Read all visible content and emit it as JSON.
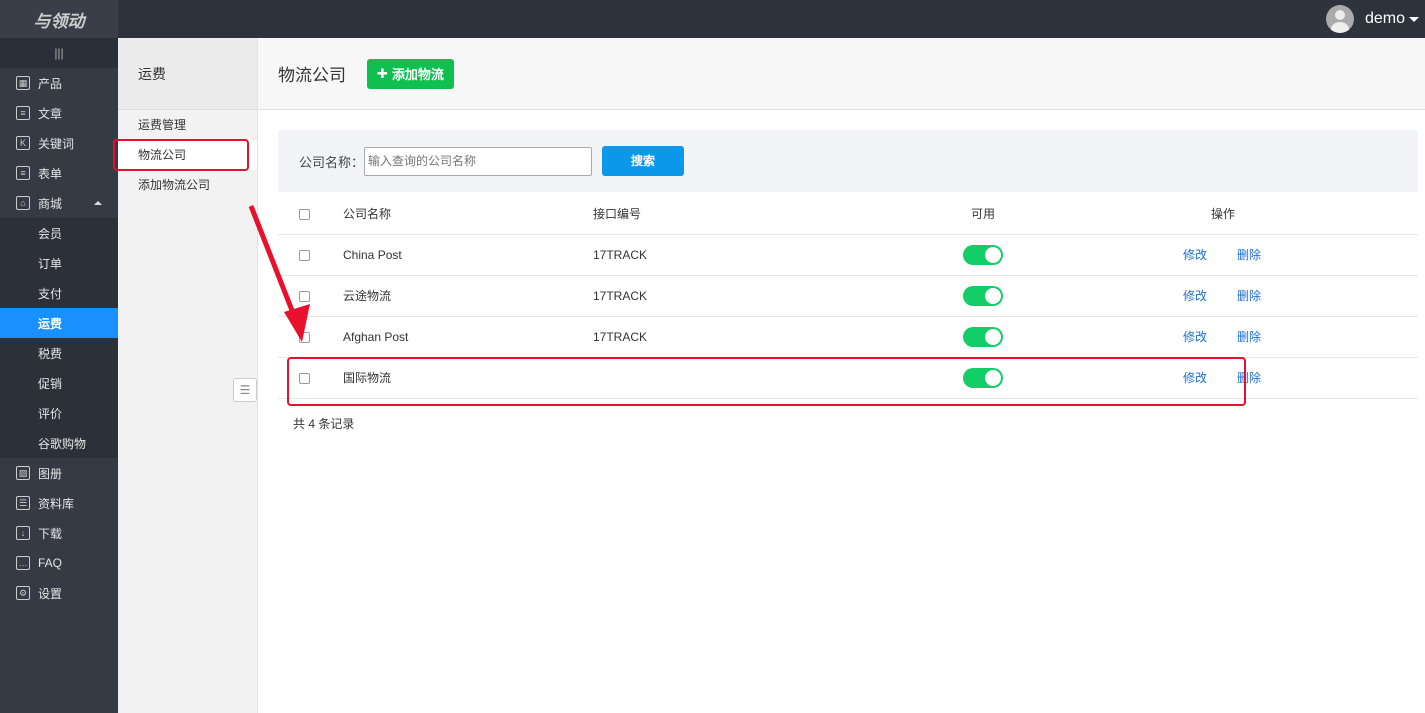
{
  "app": {
    "logo": "与领动",
    "user": "demo"
  },
  "sidebar": {
    "items": [
      {
        "label": "产品",
        "icon": "grid-icon"
      },
      {
        "label": "文章",
        "icon": "document-icon"
      },
      {
        "label": "关键词",
        "icon": "k-icon"
      },
      {
        "label": "表单",
        "icon": "clipboard-icon"
      },
      {
        "label": "商城",
        "icon": "bag-icon",
        "expanded": true,
        "children": [
          "会员",
          "订单",
          "支付",
          "运费",
          "税费",
          "促销",
          "评价",
          "谷歌购物"
        ]
      },
      {
        "label": "图册",
        "icon": "image-icon"
      },
      {
        "label": "资料库",
        "icon": "database-icon"
      },
      {
        "label": "下载",
        "icon": "download-icon"
      },
      {
        "label": "FAQ",
        "icon": "chat-icon"
      },
      {
        "label": "设置",
        "icon": "gear-icon"
      }
    ],
    "active": "运费"
  },
  "subnav": {
    "title": "运费",
    "items": [
      "运费管理",
      "物流公司",
      "添加物流公司"
    ],
    "selected": "物流公司"
  },
  "main": {
    "title": "物流公司",
    "add_label": "添加物流",
    "search_label": "公司名称：",
    "search_placeholder": "输入查询的公司名称",
    "search_button": "搜索",
    "columns": [
      "公司名称",
      "接口编号",
      "可用",
      "操作"
    ],
    "rows": [
      {
        "name": "China Post",
        "code": "17TRACK",
        "enabled": true
      },
      {
        "name": "云途物流",
        "code": "17TRACK",
        "enabled": true
      },
      {
        "name": "Afghan Post",
        "code": "17TRACK",
        "enabled": true
      },
      {
        "name": "国际物流",
        "code": "",
        "enabled": true
      }
    ],
    "edit": "修改",
    "delete": "删除",
    "total": "共 4 条记录"
  },
  "colors": {
    "accent": "#1890ff",
    "add": "#0fbf4f",
    "search": "#0c98ea",
    "toggle": "#13ce66",
    "annotation": "#e8102d"
  }
}
